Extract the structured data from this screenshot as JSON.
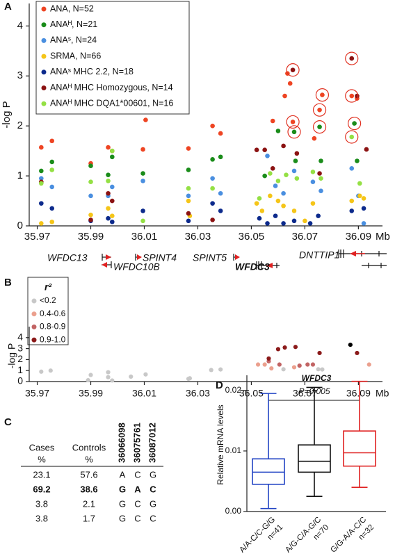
{
  "panel_labels": [
    "A",
    "B",
    "C",
    "D"
  ],
  "genes": [
    "WFDC13",
    "WFDC10B",
    "SPINT4",
    "SPINT5",
    "DNTTIP1",
    "WFDC3"
  ],
  "chart_data": [
    {
      "type": "scatter",
      "ylabel": "-log P",
      "xlabel": "Mb",
      "xlim": [
        35.967,
        36.099
      ],
      "ylim": [
        0,
        4.45
      ],
      "xticks": [
        35.97,
        35.99,
        36.01,
        36.03,
        36.05,
        36.07,
        36.09
      ],
      "yticks": [
        0,
        1,
        2,
        3,
        4
      ],
      "circle_color": "#e03020",
      "circled": [
        [
          0,
          14
        ],
        [
          0,
          16
        ],
        [
          0,
          17
        ],
        [
          0,
          18
        ],
        [
          1,
          11
        ],
        [
          1,
          13
        ],
        [
          1,
          15
        ],
        [
          5,
          10
        ],
        [
          5,
          13
        ],
        [
          6,
          15
        ]
      ],
      "series": [
        {
          "name": "ANA, N=52",
          "color": "#ee4422",
          "x": [
            35.9715,
            35.9755,
            35.99,
            35.9965,
            35.998,
            36.0095,
            36.0105,
            36.0265,
            36.0355,
            36.0385,
            36.058,
            36.0625,
            36.0635,
            36.0645,
            36.0655,
            36.0735,
            36.0755,
            36.0765,
            36.0875,
            36.0895
          ],
          "values": [
            1.57,
            1.7,
            1.25,
            1.57,
            1.5,
            1.53,
            2.12,
            1.55,
            2.0,
            1.85,
            2.1,
            2.6,
            3.05,
            2.85,
            2.08,
            1.75,
            2.32,
            2.62,
            2.6,
            2.55
          ]
        },
        {
          "name": "ANAᴴ, N=21",
          "color": "#1a8c1a",
          "x": [
            35.9715,
            35.9755,
            35.99,
            35.9965,
            35.998,
            36.0095,
            36.0265,
            36.0355,
            36.0385,
            36.055,
            36.06,
            36.066,
            36.0665,
            36.0755,
            36.076,
            36.0885,
            36.0895
          ],
          "values": [
            1.1,
            1.28,
            1.2,
            1.02,
            1.38,
            1.05,
            1.12,
            1.33,
            1.38,
            1.0,
            1.9,
            1.88,
            1.3,
            1.98,
            1.3,
            2.05,
            1.3
          ]
        },
        {
          "name": "ANAˢ, N=24",
          "color": "#4a8fe0",
          "x": [
            35.9715,
            35.9755,
            35.99,
            35.9965,
            35.998,
            36.0095,
            36.0265,
            36.0355,
            36.0385,
            36.056,
            36.059,
            36.062,
            36.066,
            36.073,
            36.076,
            36.0875,
            36.09,
            36.092
          ],
          "values": [
            0.95,
            0.78,
            0.6,
            0.6,
            0.78,
            0.9,
            0.6,
            0.95,
            0.65,
            1.4,
            0.8,
            0.65,
            1.1,
            0.88,
            0.7,
            1.15,
            0.6,
            0.05
          ]
        },
        {
          "name": "SRMA, N=66",
          "color": "#f5c518",
          "x": [
            35.9715,
            35.9755,
            35.99,
            35.9965,
            35.998,
            36.0265,
            36.027,
            36.052,
            36.054,
            36.057,
            36.06,
            36.062,
            36.066,
            36.07,
            36.073,
            36.0875,
            36.0905,
            36.092
          ],
          "values": [
            0.05,
            0.08,
            0.22,
            0.35,
            0.2,
            0.5,
            0.2,
            0.45,
            0.3,
            0.6,
            0.5,
            0.4,
            0.3,
            0.1,
            0.45,
            0.5,
            0.6,
            0.55
          ]
        },
        {
          "name": "ANAˢ MHC 2.2, N=18",
          "color": "#0c2a8c",
          "x": [
            35.9715,
            35.9755,
            35.99,
            35.9965,
            35.998,
            36.0095,
            36.0265,
            36.0355,
            36.0385,
            36.053,
            36.056,
            36.059,
            36.062,
            36.066,
            36.072,
            36.075,
            36.0875,
            36.092
          ],
          "values": [
            0.45,
            0.35,
            0.1,
            0.15,
            0.08,
            0.3,
            0.1,
            0.45,
            0.3,
            0.15,
            0.05,
            0.2,
            0.05,
            0.1,
            0.05,
            0.2,
            0.3,
            0.35
          ]
        },
        {
          "name": "ANAᴴ MHC Homozygous, N=14",
          "color": "#8b1212",
          "x": [
            35.9715,
            35.99,
            35.9965,
            35.998,
            36.0265,
            36.0355,
            36.052,
            36.055,
            36.058,
            36.062,
            36.0655,
            36.067,
            36.0755,
            36.0875,
            36.0895,
            36.093
          ],
          "values": [
            0.88,
            0.12,
            0.65,
            0.5,
            0.25,
            0.12,
            1.52,
            1.52,
            1.15,
            1.6,
            3.12,
            1.45,
            1.05,
            3.35,
            2.6,
            1.53
          ]
        },
        {
          "name": "ANAᴴ MHC DQA1*00601, N=16",
          "color": "#94e044",
          "x": [
            35.9715,
            35.9755,
            35.99,
            35.9965,
            35.998,
            36.0095,
            36.0265,
            36.0355,
            36.053,
            36.057,
            36.06,
            36.063,
            36.067,
            36.073,
            36.076,
            36.0875,
            36.0905
          ],
          "values": [
            0.85,
            1.12,
            0.88,
            0.9,
            1.5,
            0.1,
            0.75,
            0.75,
            0.55,
            1.05,
            0.9,
            1.02,
            0.95,
            1.08,
            0.95,
            1.78,
            0.85
          ]
        }
      ]
    },
    {
      "type": "scatter",
      "ylabel": "-log P",
      "xlabel": "Mb",
      "legend_title": "r²",
      "xlim": [
        35.967,
        36.099
      ],
      "ylim": [
        0,
        5
      ],
      "xticks": [
        35.97,
        35.99,
        36.01,
        36.03,
        36.05,
        36.07,
        36.09
      ],
      "yticks": [
        0,
        1,
        2,
        3,
        4
      ],
      "series": [
        {
          "name": "<0.2",
          "color": "#c8c8c8",
          "x": [
            35.9715,
            35.975,
            35.989,
            35.99,
            35.9965,
            35.9965,
            35.998,
            36.005,
            36.0105,
            36.0265,
            36.027,
            36.035,
            36.0385,
            36.062,
            36.075,
            36.0765
          ],
          "values": [
            0.9,
            1.0,
            0.12,
            0.6,
            0.85,
            0.4,
            0.1,
            0.45,
            0.65,
            0.25,
            0.3,
            1.05,
            1.1,
            1.12,
            1.12,
            1.1
          ]
        },
        {
          "name": "0.4-0.6",
          "color": "#eba08e",
          "x": [
            36.0525,
            36.055,
            36.0575,
            36.066,
            36.094
          ],
          "values": [
            1.55,
            1.55,
            1.2,
            1.3,
            1.55
          ]
        },
        {
          "name": "0.8-0.9",
          "color": "#c26464",
          "x": [
            36.0565,
            36.0605,
            36.068,
            36.071,
            36.073
          ],
          "values": [
            1.85,
            1.55,
            1.45,
            1.55,
            1.55
          ]
        },
        {
          "name": "0.9-1.0",
          "color": "#8b1a1a",
          "x": [
            36.0565,
            36.06,
            36.0625,
            36.0665,
            36.0755,
            36.0895
          ],
          "values": [
            2.1,
            2.95,
            3.1,
            3.15,
            2.6,
            2.6
          ]
        },
        {
          "color": "#000000",
          "x": [
            36.087
          ],
          "values": [
            3.35
          ]
        }
      ]
    },
    {
      "type": "box",
      "title": "WFDC3",
      "ylabel": "Relative mRNA levels",
      "annotation": "P=0.005",
      "categories": [
        "A/A-C/C-G/G",
        "A/G-C/A-G/C",
        "G/G-A/A-C/C"
      ],
      "n_labels": [
        "n=41",
        "n=70",
        "n=32"
      ],
      "colors": [
        "#2244c4",
        "#111111",
        "#e02222"
      ],
      "whislo": [
        0.0005,
        0.0025,
        0.004
      ],
      "q1": [
        0.0045,
        0.0065,
        0.0075
      ],
      "median": [
        0.0065,
        0.0083,
        0.0097
      ],
      "q3": [
        0.0087,
        0.011,
        0.0133
      ],
      "whishi": [
        0.0195,
        0.0205,
        0.0215
      ],
      "ylim": [
        0,
        0.0225
      ],
      "yticks": [
        {
          "value": 0,
          "label": "0.00"
        },
        0.01,
        0.02
      ]
    }
  ],
  "table": {
    "highlight_row": 1,
    "highlight_color": "#e02222",
    "header": [
      [
        "Cases",
        "%"
      ],
      [
        "Controls",
        "%"
      ],
      [
        "36066098"
      ],
      [
        "36075761"
      ],
      [
        "36087012"
      ]
    ],
    "rows": [
      [
        23.1,
        57.6,
        "A",
        "C",
        "G"
      ],
      [
        69.2,
        38.6,
        "G",
        "A",
        "C"
      ],
      [
        3.8,
        2.1,
        "G",
        "C",
        "G"
      ],
      [
        3.8,
        1.7,
        "G",
        "C",
        "C"
      ]
    ]
  }
}
